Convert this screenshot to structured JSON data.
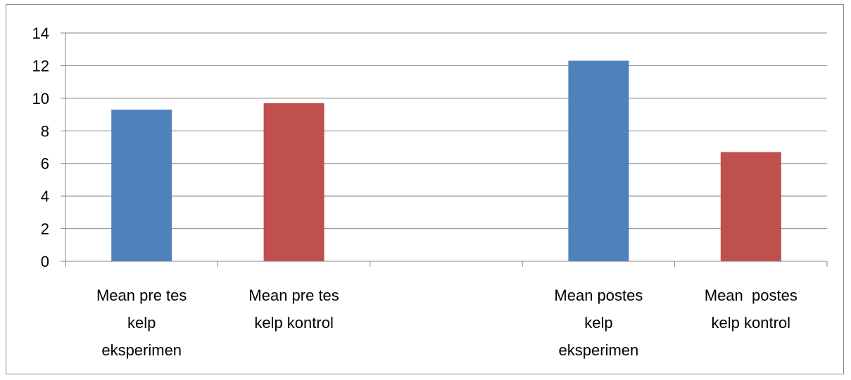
{
  "chart_data": {
    "type": "bar",
    "categories": [
      [
        "Mean pre tes",
        "kelp",
        "eksperimen"
      ],
      [
        "Mean pre tes",
        "kelp kontrol"
      ],
      [
        ""
      ],
      [
        "Mean postes",
        "kelp",
        "eksperimen"
      ],
      [
        "Mean  postes",
        "kelp kontrol"
      ]
    ],
    "values": [
      9.3,
      9.7,
      null,
      12.3,
      6.7
    ],
    "bar_colors": [
      "#4f81bd",
      "#c0504d",
      null,
      "#4f81bd",
      "#c0504d"
    ],
    "ylim": [
      0,
      14
    ],
    "yticks": [
      0,
      2,
      4,
      6,
      8,
      10,
      12,
      14
    ],
    "grid": true,
    "title": "",
    "xlabel": "",
    "ylabel": ""
  }
}
